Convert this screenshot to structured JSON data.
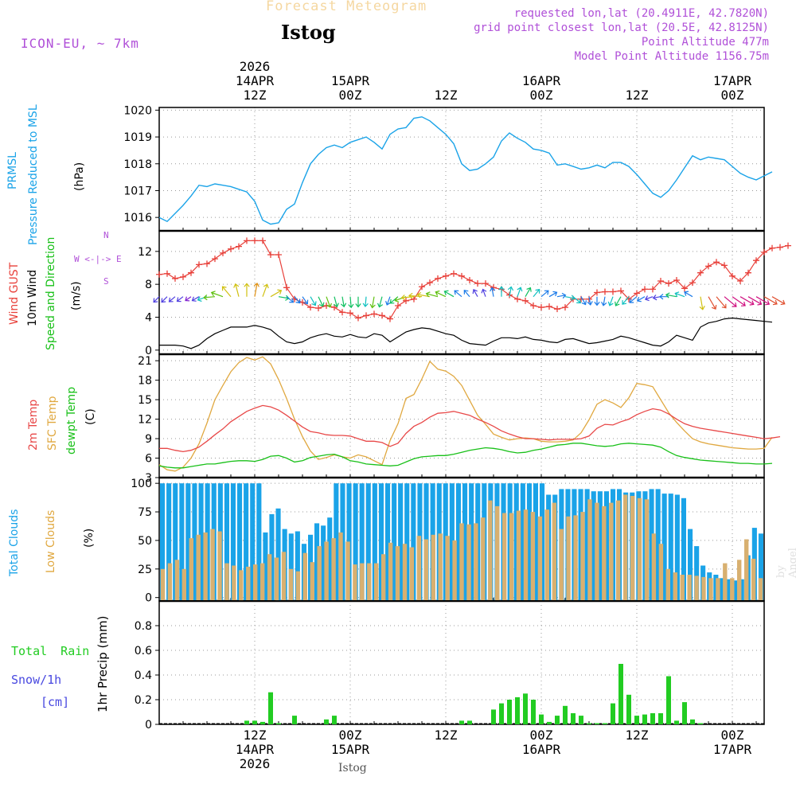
{
  "header": {
    "subtitle": "Forecast Meteogram",
    "station": "Istog",
    "model": "ICON-EU, ~ 7km",
    "requested": "requested lon,lat (20.4911E, 42.7820N)",
    "gridpoint": "grid point closest lon,lat (20.5E, 42.8125N)",
    "altitude": "Point Altitude 477m",
    "model_altitude": "Model Point Altitude 1156.75m"
  },
  "top_axis": [
    {
      "hour": 12,
      "lines": [
        "2026",
        "14APR",
        "12Z"
      ]
    },
    {
      "hour": 24,
      "lines": [
        "15APR",
        "00Z"
      ]
    },
    {
      "hour": 36,
      "lines": [
        "12Z"
      ]
    },
    {
      "hour": 48,
      "lines": [
        "16APR",
        "00Z"
      ]
    },
    {
      "hour": 60,
      "lines": [
        "12Z"
      ]
    },
    {
      "hour": 72,
      "lines": [
        "17APR",
        "00Z"
      ]
    }
  ],
  "bottom_axis": [
    {
      "hour": 12,
      "lines": [
        "12Z",
        "14APR",
        "2026"
      ]
    },
    {
      "hour": 24,
      "lines": [
        "00Z",
        "15APR"
      ]
    },
    {
      "hour": 36,
      "lines": [
        "12Z"
      ]
    },
    {
      "hour": 48,
      "lines": [
        "00Z",
        "16APR"
      ]
    },
    {
      "hour": 60,
      "lines": [
        "12Z"
      ]
    },
    {
      "hour": 72,
      "lines": [
        "00Z",
        "17APR"
      ]
    }
  ],
  "footer_label": "Istog",
  "credit": "by Angel",
  "panel_labels": {
    "pressure": [
      "PRMSL",
      "Pressure Reduced to MSL",
      "(hPa)"
    ],
    "wind": [
      "Wind GUST",
      "10m Wind",
      "Speed and Direction",
      "(m/s)"
    ],
    "compass": [
      "N",
      "W <-|-> E",
      "S"
    ],
    "temp": [
      "2m Temp",
      "SFC Temp",
      "dewpt Temp",
      "(C)"
    ],
    "clouds": [
      "Total Clouds",
      "Low Clouds",
      "(%)"
    ],
    "precip_left": [
      "Total Rain",
      "Snow/1h",
      "[cm]"
    ],
    "precip_axis": "1hr Precip (mm)"
  },
  "colors": {
    "pressure": "#1aa3e8",
    "gust": "#e8403a",
    "wind": "#000000",
    "temp2m": "#e84848",
    "sfc": "#e0a840",
    "dewpt": "#18c018",
    "total_cloud": "#1aa3e8",
    "low_cloud": "#d8b070",
    "rain": "#22cc22",
    "snow": "#4848e0",
    "purple": "#b050d8"
  },
  "chart_data": [
    {
      "type": "line",
      "id": "pressure",
      "title": "PRMSL Pressure Reduced to MSL",
      "ylabel": "(hPa)",
      "xlim": [
        0,
        76
      ],
      "ylim": [
        1015.5,
        1020.1
      ],
      "yticks": [
        1016,
        1017,
        1018,
        1019,
        1020
      ],
      "series": [
        {
          "name": "PRMSL",
          "x_start": 0,
          "x_step": 1,
          "values": [
            1016.0,
            1015.85,
            1016.15,
            1016.45,
            1016.8,
            1017.2,
            1017.15,
            1017.25,
            1017.2,
            1017.15,
            1017.05,
            1016.95,
            1016.6,
            1015.9,
            1015.75,
            1015.8,
            1016.3,
            1016.5,
            1017.3,
            1018.0,
            1018.35,
            1018.6,
            1018.7,
            1018.6,
            1018.8,
            1018.9,
            1019.0,
            1018.8,
            1018.55,
            1019.1,
            1019.3,
            1019.35,
            1019.7,
            1019.75,
            1019.6,
            1019.35,
            1019.1,
            1018.75,
            1018.0,
            1017.75,
            1017.8,
            1018.0,
            1018.25,
            1018.85,
            1019.15,
            1018.95,
            1018.8,
            1018.55,
            1018.5,
            1018.4,
            1017.95,
            1018.0,
            1017.9,
            1017.8,
            1017.85,
            1017.95,
            1017.85,
            1018.05,
            1018.05,
            1017.9,
            1017.6,
            1017.25,
            1016.9,
            1016.75,
            1017.0,
            1017.4,
            1017.85,
            1018.3,
            1018.15,
            1018.25,
            1018.2,
            1018.15,
            1017.9,
            1017.65,
            1017.5,
            1017.4,
            1017.55,
            1017.7
          ]
        }
      ]
    },
    {
      "type": "line",
      "id": "wind",
      "title": "Wind GUST / 10m Wind Speed and Direction",
      "ylabel": "(m/s)",
      "xlim": [
        0,
        76
      ],
      "ylim": [
        -0.5,
        14.5
      ],
      "yticks": [
        0,
        4,
        8,
        12
      ],
      "series": [
        {
          "name": "Wind GUST",
          "x_start": 0,
          "x_step": 1,
          "markers": true,
          "values": [
            9.2,
            9.3,
            8.7,
            8.9,
            9.4,
            10.4,
            10.5,
            11.1,
            11.8,
            12.3,
            12.6,
            13.3,
            13.3,
            13.3,
            11.6,
            11.6,
            7.6,
            6.2,
            5.8,
            5.2,
            5.1,
            5.4,
            5.2,
            4.6,
            4.5,
            3.9,
            4.2,
            4.4,
            4.2,
            3.8,
            5.4,
            6.0,
            6.2,
            7.7,
            8.2,
            8.7,
            9.0,
            9.3,
            9.0,
            8.5,
            8.1,
            8.1,
            7.6,
            7.4,
            6.7,
            6.2,
            6.0,
            5.4,
            5.2,
            5.3,
            5.0,
            5.2,
            6.2,
            6.2,
            6.2,
            7.0,
            7.1,
            7.1,
            7.2,
            6.2,
            6.9,
            7.4,
            7.4,
            8.4,
            8.1,
            8.5,
            7.5,
            8.2,
            9.4,
            10.2,
            10.7,
            10.3,
            9.0,
            8.4,
            9.4,
            10.9,
            11.9,
            12.4,
            12.5,
            12.7
          ]
        },
        {
          "name": "10m Wind",
          "x_start": 0,
          "x_step": 1,
          "values": [
            0.6,
            0.6,
            0.6,
            0.5,
            0.2,
            0.6,
            1.4,
            2.0,
            2.4,
            2.8,
            2.8,
            2.8,
            3.0,
            2.8,
            2.5,
            1.7,
            1.0,
            0.8,
            1.0,
            1.5,
            1.8,
            2.0,
            1.7,
            1.6,
            1.9,
            1.6,
            1.5,
            2.0,
            1.8,
            1.0,
            1.6,
            2.2,
            2.5,
            2.7,
            2.6,
            2.3,
            2.0,
            1.8,
            1.2,
            0.8,
            0.7,
            0.6,
            1.1,
            1.5,
            1.5,
            1.4,
            1.6,
            1.3,
            1.2,
            1.0,
            0.9,
            1.3,
            1.4,
            1.1,
            0.8,
            0.9,
            1.1,
            1.3,
            1.7,
            1.5,
            1.2,
            0.9,
            0.6,
            0.5,
            1.0,
            1.8,
            1.5,
            1.2,
            2.8,
            3.3,
            3.5,
            3.8,
            3.9,
            3.8,
            3.7,
            3.6,
            3.5,
            3.4
          ]
        },
        {
          "name": "Wind Direction (arrows, deg toward)",
          "x_start": 0,
          "x_step": 1,
          "directions": [
            225,
            225,
            230,
            232,
            235,
            240,
            250,
            265,
            290,
            320,
            345,
            0,
            10,
            20,
            60,
            100,
            130,
            140,
            145,
            150,
            155,
            160,
            165,
            170,
            175,
            180,
            185,
            190,
            195,
            200,
            230,
            250,
            265,
            275,
            280,
            285,
            295,
            300,
            310,
            320,
            330,
            340,
            350,
            0,
            10,
            20,
            30,
            40,
            50,
            60,
            80,
            100,
            130,
            150,
            170,
            180,
            190,
            200,
            210,
            220,
            230,
            240,
            250,
            260,
            270,
            280,
            290,
            300,
            170,
            150,
            140,
            130,
            125,
            120,
            120,
            120,
            120,
            120
          ]
        }
      ]
    },
    {
      "type": "line",
      "id": "temp",
      "title": "2m Temp / SFC Temp / dewpt Temp",
      "ylabel": "(C)",
      "xlim": [
        0,
        76
      ],
      "ylim": [
        3,
        22
      ],
      "yticks": [
        3,
        6,
        9,
        12,
        15,
        18,
        21
      ],
      "series": [
        {
          "name": "2m Temp",
          "x_start": 0,
          "x_step": 1,
          "values": [
            7.5,
            7.5,
            7.2,
            7.0,
            7.2,
            7.7,
            8.6,
            9.6,
            10.5,
            11.6,
            12.4,
            13.2,
            13.7,
            14.1,
            13.9,
            13.4,
            12.6,
            11.7,
            10.8,
            10.1,
            9.9,
            9.6,
            9.5,
            9.5,
            9.4,
            9.0,
            8.6,
            8.6,
            8.4,
            7.8,
            8.3,
            9.8,
            10.9,
            11.5,
            12.3,
            12.9,
            13.0,
            13.2,
            12.9,
            12.6,
            12.0,
            11.5,
            10.9,
            10.2,
            9.7,
            9.3,
            9.0,
            9.0,
            8.9,
            8.8,
            8.9,
            8.9,
            8.9,
            9.0,
            9.4,
            10.6,
            11.2,
            11.1,
            11.6,
            12.0,
            12.7,
            13.2,
            13.6,
            13.4,
            12.8,
            12.0,
            11.3,
            10.9,
            10.6,
            10.4,
            10.2,
            10.0,
            9.8,
            9.6,
            9.4,
            9.2,
            9.0,
            9.1,
            9.3
          ]
        },
        {
          "name": "SFC Temp",
          "x_start": 0,
          "x_step": 1,
          "values": [
            5.0,
            4.2,
            4.0,
            4.6,
            6.0,
            8.2,
            11.4,
            15.0,
            17.2,
            19.3,
            20.7,
            21.5,
            21.1,
            21.6,
            20.5,
            18.1,
            15.2,
            12.0,
            9.3,
            7.1,
            5.8,
            6.1,
            6.5,
            6.2,
            6.0,
            6.5,
            6.2,
            5.6,
            5.0,
            8.7,
            11.3,
            15.2,
            15.8,
            18.2,
            20.9,
            19.7,
            19.4,
            18.6,
            17.2,
            14.9,
            12.6,
            11.2,
            9.7,
            9.2,
            8.8,
            9.0,
            9.1,
            9.0,
            8.6,
            8.5,
            8.5,
            8.6,
            8.8,
            9.9,
            11.9,
            14.3,
            15.0,
            14.5,
            13.8,
            15.3,
            17.5,
            17.3,
            17.0,
            15.0,
            13.0,
            11.5,
            10.2,
            9.0,
            8.5,
            8.2,
            8.0,
            7.8,
            7.6,
            7.5,
            7.4,
            7.4,
            7.5,
            9.2
          ]
        },
        {
          "name": "dewpt Temp",
          "x_start": 0,
          "x_step": 1,
          "values": [
            4.8,
            4.6,
            4.5,
            4.5,
            4.7,
            4.9,
            5.1,
            5.1,
            5.3,
            5.5,
            5.6,
            5.6,
            5.5,
            5.8,
            6.3,
            6.4,
            6.0,
            5.4,
            5.6,
            6.1,
            6.3,
            6.5,
            6.6,
            6.2,
            5.6,
            5.4,
            5.1,
            5.0,
            4.9,
            4.8,
            4.9,
            5.4,
            5.9,
            6.2,
            6.3,
            6.4,
            6.4,
            6.6,
            6.9,
            7.2,
            7.4,
            7.6,
            7.5,
            7.3,
            7.0,
            6.8,
            6.9,
            7.2,
            7.4,
            7.7,
            8.0,
            8.1,
            8.3,
            8.3,
            8.1,
            7.9,
            7.8,
            7.9,
            8.2,
            8.3,
            8.2,
            8.1,
            8.0,
            7.7,
            7.0,
            6.4,
            6.1,
            5.9,
            5.7,
            5.6,
            5.5,
            5.4,
            5.3,
            5.2,
            5.2,
            5.1,
            5.1,
            5.2
          ]
        }
      ]
    },
    {
      "type": "bar",
      "id": "clouds",
      "title": "Total Clouds / Low Clouds",
      "ylabel": "(%)",
      "xlim": [
        0,
        76
      ],
      "ylim": [
        -3,
        105
      ],
      "yticks": [
        0,
        25,
        50,
        75,
        100
      ],
      "series": [
        {
          "name": "Total Clouds",
          "x_start": 0,
          "x_step": 1,
          "values": [
            100,
            100,
            100,
            100,
            100,
            100,
            100,
            100,
            100,
            100,
            100,
            100,
            100,
            100,
            100,
            100,
            57,
            73,
            78,
            60,
            56,
            58,
            47,
            55,
            65,
            63,
            70,
            100,
            100,
            100,
            100,
            100,
            100,
            100,
            100,
            100,
            100,
            100,
            100,
            100,
            100,
            100,
            100,
            100,
            100,
            100,
            100,
            100,
            100,
            100,
            100,
            100,
            100,
            100,
            100,
            100,
            100,
            100,
            100,
            100,
            90,
            90,
            95,
            95,
            95,
            95,
            95,
            93,
            93,
            93,
            95,
            95,
            92,
            92,
            93,
            93,
            95,
            95,
            91,
            91,
            90,
            87,
            60,
            45,
            28,
            22,
            20,
            17,
            16,
            15,
            16,
            37,
            61,
            56
          ]
        },
        {
          "name": "Low Clouds",
          "x_start": 0,
          "x_step": 1,
          "values": [
            25,
            30,
            33,
            25,
            52,
            55,
            57,
            60,
            58,
            30,
            28,
            24,
            27,
            29,
            30,
            38,
            35,
            40,
            25,
            23,
            39,
            31,
            45,
            49,
            52,
            57,
            49,
            29,
            30,
            30,
            30,
            38,
            48,
            45,
            47,
            44,
            54,
            51,
            55,
            56,
            54,
            50,
            65,
            64,
            65,
            70,
            85,
            80,
            74,
            74,
            76,
            77,
            75,
            71,
            77,
            83,
            60,
            71,
            72,
            75,
            86,
            83,
            80,
            83,
            85,
            90,
            89,
            87,
            86,
            56,
            47,
            25,
            22,
            20,
            20,
            19,
            18,
            17,
            17,
            30,
            17,
            33,
            51,
            34,
            17
          ]
        }
      ]
    },
    {
      "type": "bar",
      "id": "precip",
      "title": "1hr Precip (mm)",
      "ylabel": "1hr Precip (mm)",
      "xlim": [
        0,
        76
      ],
      "ylim": [
        0,
        1.0
      ],
      "yticks": [
        0,
        0.2,
        0.4,
        0.6,
        0.8
      ],
      "series": [
        {
          "name": "Total Rain",
          "x": [
            11,
            12,
            13,
            14,
            15,
            17,
            21,
            22,
            38,
            39,
            42,
            43,
            44,
            45,
            46,
            47,
            48,
            49,
            50,
            51,
            52,
            53,
            54,
            55,
            56,
            57,
            58,
            59,
            60,
            61,
            62,
            63,
            64,
            65,
            66,
            67,
            68
          ],
          "values": [
            0.03,
            0.03,
            0.02,
            0.26,
            0.01,
            0.07,
            0.04,
            0.07,
            0.03,
            0.03,
            0.12,
            0.17,
            0.2,
            0.22,
            0.25,
            0.2,
            0.08,
            0.02,
            0.07,
            0.15,
            0.09,
            0.07,
            0.01,
            0.01,
            0.01,
            0.17,
            0.49,
            0.24,
            0.07,
            0.08,
            0.09,
            0.09,
            0.39,
            0.03,
            0.18,
            0.04,
            0.01
          ]
        },
        {
          "name": "Snow/1h",
          "x": [],
          "values": []
        }
      ]
    }
  ]
}
